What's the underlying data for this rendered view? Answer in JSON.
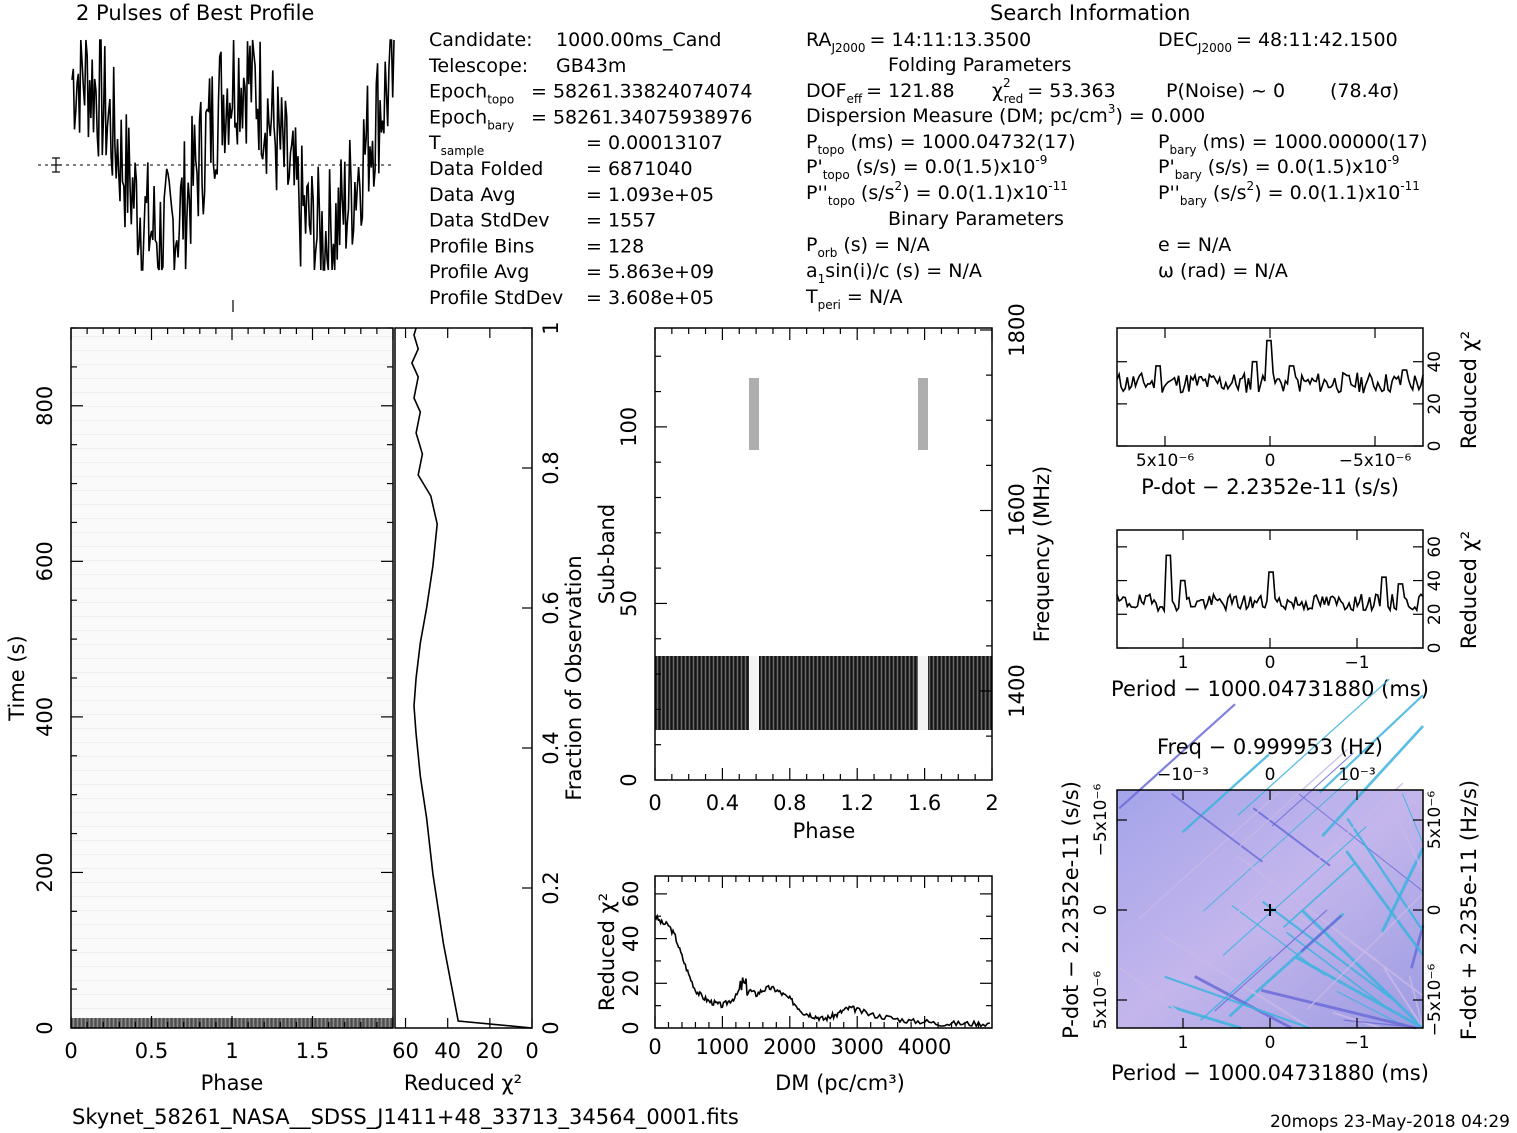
{
  "header": {
    "profile_title": "2 Pulses of Best Profile",
    "search_title": "Search Information"
  },
  "info_left": [
    {
      "label": "Candidate:",
      "value": "1000.00ms_Cand"
    },
    {
      "label": "Telescope:",
      "value": "GB43m"
    },
    {
      "label": "Epoch",
      "sub": "topo",
      "value": "= 58261.33824074074"
    },
    {
      "label": "Epoch",
      "sub": "bary",
      "value": "= 58261.34075938976"
    },
    {
      "label": "T",
      "sub": "sample",
      "value": "=   0.00013107"
    },
    {
      "label": "Data Folded",
      "value": "=   6871040"
    },
    {
      "label": "Data Avg",
      "value": "=   1.093e+05"
    },
    {
      "label": "Data StdDev",
      "value": "=   1557"
    },
    {
      "label": "Profile Bins",
      "value": "=   128"
    },
    {
      "label": "Profile Avg",
      "value": "=   5.863e+09"
    },
    {
      "label": "Profile StdDev",
      "value": "=   3.608e+05"
    }
  ],
  "info_right": {
    "ra": "RA",
    "ra_sub": "J2000",
    "ra_val": "= 14:11:13.3500",
    "dec": "DEC",
    "dec_sub": "J2000",
    "dec_val": "= 48:11:42.1500",
    "folding_title": "Folding Parameters",
    "dof": "DOF",
    "dof_sub": "eff",
    "dof_val": "= 121.88",
    "chi": "χ",
    "chi_sup": "2",
    "chi_sub": "red",
    "chi_val": "= 53.363",
    "pnoise": "P(Noise) ~ 0",
    "sigma": "(78.4σ)",
    "dm_line_a": "Dispersion Measure (DM; pc/cm",
    "dm_line_sup": "3",
    "dm_line_b": ") = 0.000",
    "ptopo": "P",
    "ptopo_sub": "topo",
    "ptopo_val": "(ms) =  1000.04732(17)",
    "pbary": "P",
    "pbary_sub": "bary",
    "pbary_val": "(ms) =  1000.00000(17)",
    "pdtopo": "P'",
    "pdtopo_sub": "topo",
    "pdtopo_val": "(s/s) = 0.0(1.5)x10",
    "pdtopo_exp": "-9",
    "pdbary": "P'",
    "pdbary_sub": "bary",
    "pdbary_val": "(s/s) = 0.0(1.5)x10",
    "pdbary_exp": "-9",
    "pddtopo": "P''",
    "pddtopo_sub": "topo",
    "pddtopo_val": "(s/s",
    "pddtopo_sup": "2",
    "pddtopo_val2": ") = 0.0(1.1)x10",
    "pddtopo_exp": "-11",
    "pddbary": "P''",
    "pddbary_sub": "bary",
    "pddbary_val": "(s/s",
    "pddbary_sup": "2",
    "pddbary_val2": ") = 0.0(1.1)x10",
    "pddbary_exp": "-11",
    "binary_title": "Binary Parameters",
    "porb": "P",
    "porb_sub": "orb",
    "porb_val": "(s) = N/A",
    "e_val": "e = N/A",
    "a1": "a",
    "a1_sub": "1",
    "a1_val": "sin(i)/c (s) = N/A",
    "omega_val": "ω (rad) = N/A",
    "tperi": "T",
    "tperi_sub": "peri",
    "tperi_val": "= N/A"
  },
  "footer": {
    "filename": "Skynet_58261_NASA__SDSS_J1411+48_33713_34564_0001.fits",
    "stamp": "20mops 23-May-2018 04:29"
  },
  "colors": {
    "ink": "#000000",
    "plane_base": "#9a9ae6",
    "plane_streak": "#3fb3e0",
    "plane_light": "#c8b8e8"
  },
  "chart_data": [
    {
      "id": "profile",
      "type": "line",
      "title": "2 Pulses of Best Profile",
      "x_range": [
        0,
        2
      ],
      "note_points": 256
    },
    {
      "id": "time-phase",
      "type": "heatmap",
      "xlabel": "Phase",
      "ylabel": "Time (s)",
      "x_ticks": [
        "0",
        "0.5",
        "1",
        "1.5"
      ],
      "y_ticks": [
        "0",
        "200",
        "400",
        "600",
        "800"
      ],
      "xlim": [
        0,
        2
      ],
      "ylim": [
        0,
        900
      ]
    },
    {
      "id": "time-chi",
      "type": "line",
      "xlabel": "Reduced χ²",
      "ylabel": "Fraction of Observation",
      "x_ticks": [
        "60",
        "40",
        "20",
        "0"
      ],
      "y_ticks": [
        "0",
        "0.2",
        "0.4",
        "0.6",
        "0.8",
        "1"
      ],
      "xlim": [
        65,
        0
      ],
      "ylim": [
        0,
        1
      ],
      "x": [
        0,
        35,
        42,
        47,
        50,
        53,
        55,
        56,
        55,
        53,
        50,
        47,
        45,
        48,
        54,
        52,
        55,
        53,
        56,
        54,
        57,
        54,
        56,
        55
      ],
      "y": [
        0,
        0.01,
        0.12,
        0.22,
        0.3,
        0.36,
        0.42,
        0.46,
        0.5,
        0.55,
        0.6,
        0.66,
        0.72,
        0.76,
        0.79,
        0.82,
        0.85,
        0.88,
        0.9,
        0.93,
        0.95,
        0.97,
        0.99,
        1
      ]
    },
    {
      "id": "subband-phase",
      "type": "heatmap",
      "xlabel": "Phase",
      "ylabel": "Sub-band",
      "y2label": "Frequency (MHz)",
      "x_ticks": [
        "0",
        "0.4",
        "0.8",
        "1.2",
        "1.6",
        "2"
      ],
      "y_ticks": [
        "0",
        "50",
        "100"
      ],
      "y2_ticks": [
        "1400",
        "1600",
        "1800"
      ],
      "xlim": [
        0,
        2
      ],
      "ylim": [
        0,
        128
      ]
    },
    {
      "id": "dm-chi",
      "type": "line",
      "xlabel": "DM (pc/cm³)",
      "ylabel": "Reduced χ²",
      "x_ticks": [
        "0",
        "1000",
        "2000",
        "3000",
        "4000"
      ],
      "y_ticks": [
        "0",
        "20",
        "40",
        "60"
      ],
      "xlim": [
        0,
        5000
      ],
      "ylim": [
        0,
        68
      ],
      "x": [
        0,
        100,
        200,
        300,
        400,
        500,
        600,
        700,
        800,
        900,
        1000,
        1100,
        1200,
        1300,
        1400,
        1500,
        1600,
        1700,
        1800,
        1900,
        2000,
        2100,
        2200,
        2300,
        2400,
        2500,
        2600,
        2700,
        2800,
        2900,
        3000,
        3200,
        3400,
        3600,
        3800,
        4000,
        4200,
        4400,
        4600,
        4800,
        5000
      ],
      "y": [
        50,
        47,
        46,
        41,
        32,
        24,
        17,
        14,
        12,
        11,
        10,
        12,
        14,
        20,
        17,
        15,
        17,
        18,
        17,
        15,
        13,
        10,
        7,
        6,
        5,
        4,
        5,
        6,
        8,
        9,
        8,
        6,
        5,
        4,
        3,
        3,
        2,
        2,
        2,
        2,
        2
      ]
    },
    {
      "id": "pdot-chi",
      "type": "line",
      "xlabel": "P-dot − 2.2352e-11 (s/s)",
      "ylabel": "Reduced χ²",
      "x_ticks": [
        "5x10⁻⁶",
        "0",
        "−5x10⁻⁶"
      ],
      "y_ticks": [
        "0",
        "20",
        "40"
      ],
      "ylim": [
        0,
        56
      ]
    },
    {
      "id": "period-chi",
      "type": "line",
      "xlabel": "Period − 1000.04731880 (ms)",
      "ylabel": "Reduced χ²",
      "x_ticks": [
        "1",
        "0",
        "−1"
      ],
      "y_ticks": [
        "0",
        "20",
        "40",
        "60"
      ],
      "ylim": [
        0,
        70
      ]
    },
    {
      "id": "p-pdot-plane",
      "type": "heatmap",
      "title": "Freq − 0.999953 (Hz)",
      "xlabel": "Period − 1000.04731880 (ms)",
      "ylabel": "P-dot − 2.2352e-11 (s/s)",
      "y2label": "F-dot + 2.235e-11 (Hz/s)",
      "x_ticks": [
        "1",
        "0",
        "−1"
      ],
      "x2_ticks": [
        "−10⁻³",
        "0",
        "10⁻³"
      ],
      "y_ticks": [
        "5x10⁻⁶",
        "0",
        "−5x10⁻⁶"
      ],
      "y2_ticks": [
        "−5x10⁻⁶",
        "0",
        "5x10⁻⁶"
      ]
    }
  ]
}
